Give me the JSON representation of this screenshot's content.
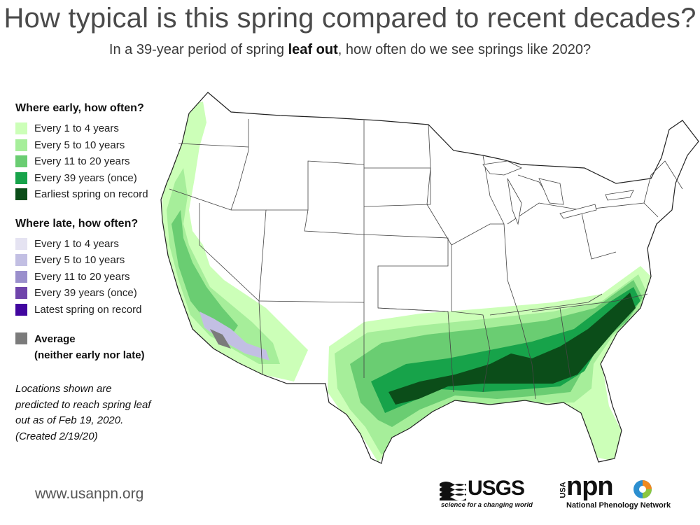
{
  "header": {
    "title": "How typical is this spring compared to recent decades?",
    "subtitle_before": "In a 39-year period of spring ",
    "subtitle_bold": "leaf out",
    "subtitle_after": ", how often do we see springs like 2020?"
  },
  "legend": {
    "early_heading": "Where early, how often?",
    "early_items": [
      {
        "label": "Every 1 to 4 years",
        "color": "#ccffb8"
      },
      {
        "label": "Every 5 to 10 years",
        "color": "#a6ee9a"
      },
      {
        "label": "Every 11 to 20 years",
        "color": "#6acd72"
      },
      {
        "label": "Every 39 years (once)",
        "color": "#17a34a"
      },
      {
        "label": "Earliest spring on record",
        "color": "#0b4d19"
      }
    ],
    "late_heading": "Where late, how often?",
    "late_items": [
      {
        "label": "Every 1 to 4 years",
        "color": "#e5e3f2"
      },
      {
        "label": "Every 5 to 10 years",
        "color": "#c2bfe3"
      },
      {
        "label": "Every 11 to 20 years",
        "color": "#9a8fcc"
      },
      {
        "label": "Every 39 years (once)",
        "color": "#6f44ab"
      },
      {
        "label": "Latest spring on record",
        "color": "#41069f"
      }
    ],
    "average_label_line1": "Average",
    "average_label_line2": "(neither early nor late)",
    "average_color": "#7b7b7b"
  },
  "note": {
    "line1": "Locations shown are",
    "line2": "predicted to reach spring leaf",
    "line3": "out as of  Feb 19, 2020.",
    "line4": "(Created 2/19/20)"
  },
  "footer": {
    "website": "www.usanpn.org",
    "usgs_name": "USGS",
    "usgs_tagline": "science for a changing world",
    "npn_usa": "USA",
    "npn_name": "npn",
    "npn_tagline": "National Phenology Network"
  }
}
